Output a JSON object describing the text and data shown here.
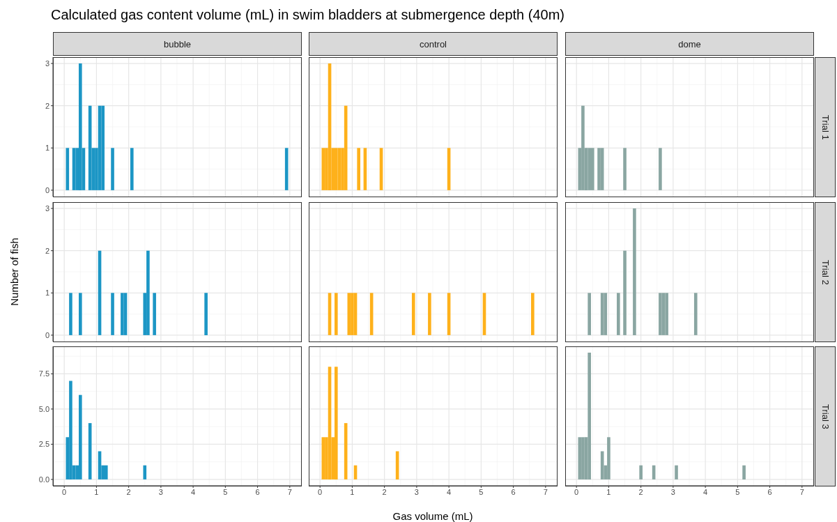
{
  "chart_data": [
    {
      "type": "histogram",
      "title": "Calculated gas content volume (mL) in swim bladders at submergence depth (40m)",
      "subtitle": "bubble",
      "color": "#1c96c5",
      "bins": [
        0.05,
        0.15,
        0.25,
        0.35,
        0.45,
        0.55,
        0.65,
        0.75,
        0.85,
        0.95,
        1.05,
        1.15,
        1.25,
        1.45,
        1.55,
        2.05,
        2.15,
        6.85,
        6.95
      ],
      "values": [
        1,
        0,
        1,
        1,
        3,
        1,
        0,
        2,
        1,
        1,
        2,
        2,
        0,
        1,
        0,
        1,
        0,
        1
      ],
      "xlim": [
        -0.35,
        7.35
      ],
      "xticks": [
        0,
        1,
        2,
        3,
        4,
        5,
        6,
        7
      ],
      "ylim": [
        -0.15,
        3.15
      ],
      "yticks": [
        0,
        1,
        2,
        3
      ],
      "grid": true,
      "tick_labels": "y"
    },
    {
      "type": "histogram",
      "subtitle": "control",
      "color": "#feb11b",
      "bins": [
        0.05,
        0.15,
        0.25,
        0.35,
        0.45,
        0.55,
        0.65,
        0.75,
        0.85,
        1.15,
        1.25,
        1.35,
        1.45,
        1.85,
        1.95,
        3.95,
        4.05
      ],
      "values": [
        1,
        1,
        3,
        1,
        1,
        1,
        1,
        2,
        0,
        1,
        0,
        1,
        0,
        1,
        0,
        1
      ],
      "xlim": [
        -0.35,
        7.35
      ],
      "xticks": [
        0,
        1,
        2,
        3,
        4,
        5,
        6,
        7
      ],
      "ylim": [
        -0.15,
        3.15
      ],
      "yticks": [
        0,
        1,
        2,
        3
      ],
      "grid": true,
      "tick_labels": false
    },
    {
      "type": "histogram",
      "subtitle": "dome",
      "y2label": "Trial 1",
      "color": "#8aa6a2",
      "bins": [
        0.05,
        0.15,
        0.25,
        0.35,
        0.45,
        0.55,
        0.65,
        0.75,
        0.85,
        1.45,
        1.55,
        2.55,
        2.65
      ],
      "values": [
        1,
        2,
        1,
        1,
        1,
        0,
        1,
        1,
        0,
        1,
        0,
        1
      ],
      "xlim": [
        -0.35,
        7.35
      ],
      "xticks": [
        0,
        1,
        2,
        3,
        4,
        5,
        6,
        7
      ],
      "ylim": [
        -0.15,
        3.15
      ],
      "yticks": [
        0,
        1,
        2,
        3
      ],
      "grid": true,
      "tick_labels": false
    },
    {
      "type": "histogram",
      "ylabel": "Number of fish",
      "color": "#1c96c5",
      "bins": [
        0.15,
        0.25,
        0.45,
        0.55,
        1.05,
        1.15,
        1.45,
        1.55,
        1.75,
        1.85,
        1.95,
        2.45,
        2.55,
        2.65,
        2.75,
        2.85,
        4.35,
        4.45
      ],
      "values": [
        1,
        0,
        1,
        0,
        2,
        0,
        1,
        0,
        1,
        1,
        0,
        1,
        2,
        0,
        1,
        0,
        1
      ],
      "xlim": [
        -0.35,
        7.35
      ],
      "xticks": [
        0,
        1,
        2,
        3,
        4,
        5,
        6,
        7
      ],
      "ylim": [
        -0.15,
        3.15
      ],
      "yticks": [
        0,
        1,
        2,
        3
      ],
      "grid": true,
      "tick_labels": "y"
    },
    {
      "type": "histogram",
      "color": "#feb11b",
      "bins": [
        0.25,
        0.35,
        0.45,
        0.55,
        0.85,
        0.95,
        1.05,
        1.15,
        1.55,
        1.65,
        2.85,
        2.95,
        3.35,
        3.45,
        3.95,
        4.05,
        5.05,
        5.15,
        6.55,
        6.65
      ],
      "values": [
        1,
        0,
        1,
        0,
        1,
        1,
        1,
        0,
        1,
        0,
        1,
        0,
        1,
        0,
        1,
        0,
        1,
        0,
        1
      ],
      "xlim": [
        -0.35,
        7.35
      ],
      "xticks": [
        0,
        1,
        2,
        3,
        4,
        5,
        6,
        7
      ],
      "ylim": [
        -0.15,
        3.15
      ],
      "yticks": [
        0,
        1,
        2,
        3
      ],
      "grid": true,
      "tick_labels": false
    },
    {
      "type": "histogram",
      "y2label": "Trial 2",
      "color": "#8aa6a2",
      "bins": [
        0.35,
        0.45,
        0.75,
        0.85,
        0.95,
        1.25,
        1.35,
        1.45,
        1.55,
        1.75,
        1.85,
        2.55,
        2.65,
        2.75,
        2.85,
        3.65,
        3.75
      ],
      "values": [
        1,
        0,
        1,
        1,
        0,
        1,
        0,
        2,
        0,
        3,
        0,
        1,
        1,
        1,
        0,
        1
      ],
      "xlim": [
        -0.35,
        7.35
      ],
      "xticks": [
        0,
        1,
        2,
        3,
        4,
        5,
        6,
        7
      ],
      "ylim": [
        -0.15,
        3.15
      ],
      "yticks": [
        0,
        1,
        2,
        3
      ],
      "grid": true,
      "tick_labels": false
    },
    {
      "type": "histogram",
      "color": "#1c96c5",
      "bins": [
        0.05,
        0.15,
        0.25,
        0.35,
        0.45,
        0.55,
        0.75,
        0.85,
        1.05,
        1.15,
        1.25,
        1.35,
        2.45,
        2.55
      ],
      "values": [
        3,
        7,
        1,
        1,
        6,
        0,
        4,
        0,
        2,
        1,
        1,
        0,
        1
      ],
      "xlim": [
        -0.35,
        7.35
      ],
      "xticks": [
        0,
        1,
        2,
        3,
        4,
        5,
        6,
        7
      ],
      "ylim": [
        -0.45,
        9.45
      ],
      "yticks": [
        {
          "value": 0,
          "label": "0.0"
        },
        {
          "value": 2.5,
          "label": "2.5"
        },
        {
          "value": 5,
          "label": "5.0"
        },
        {
          "value": 7.5,
          "label": "7.5"
        }
      ],
      "grid": true
    },
    {
      "type": "histogram",
      "xlabel": "Gas volume (mL)",
      "color": "#feb11b",
      "bins": [
        0.05,
        0.15,
        0.25,
        0.35,
        0.45,
        0.55,
        0.75,
        0.85,
        1.05,
        1.15,
        2.35,
        2.45
      ],
      "values": [
        3,
        3,
        8,
        3,
        8,
        0,
        4,
        0,
        1,
        0,
        2
      ],
      "xlim": [
        -0.35,
        7.35
      ],
      "xticks": [
        0,
        1,
        2,
        3,
        4,
        5,
        6,
        7
      ],
      "ylim": [
        -0.45,
        9.45
      ],
      "yticks": [
        0,
        2.5,
        5,
        7.5
      ],
      "grid": true,
      "tick_labels": "x"
    },
    {
      "type": "histogram",
      "y2label": "Trial 3",
      "color": "#8aa6a2",
      "bins": [
        0.05,
        0.15,
        0.25,
        0.35,
        0.45,
        0.75,
        0.85,
        0.95,
        1.05,
        1.95,
        2.05,
        2.35,
        2.45,
        3.05,
        3.15,
        5.15,
        5.25
      ],
      "values": [
        3,
        3,
        3,
        9,
        0,
        2,
        1,
        3,
        0,
        1,
        0,
        1,
        0,
        1,
        0,
        1
      ],
      "xlim": [
        -0.35,
        7.35
      ],
      "xticks": [
        0,
        1,
        2,
        3,
        4,
        5,
        6,
        7
      ],
      "ylim": [
        -0.45,
        9.45
      ],
      "yticks": [
        0,
        2.5,
        5,
        7.5
      ],
      "grid": true,
      "tick_labels": "x"
    }
  ]
}
